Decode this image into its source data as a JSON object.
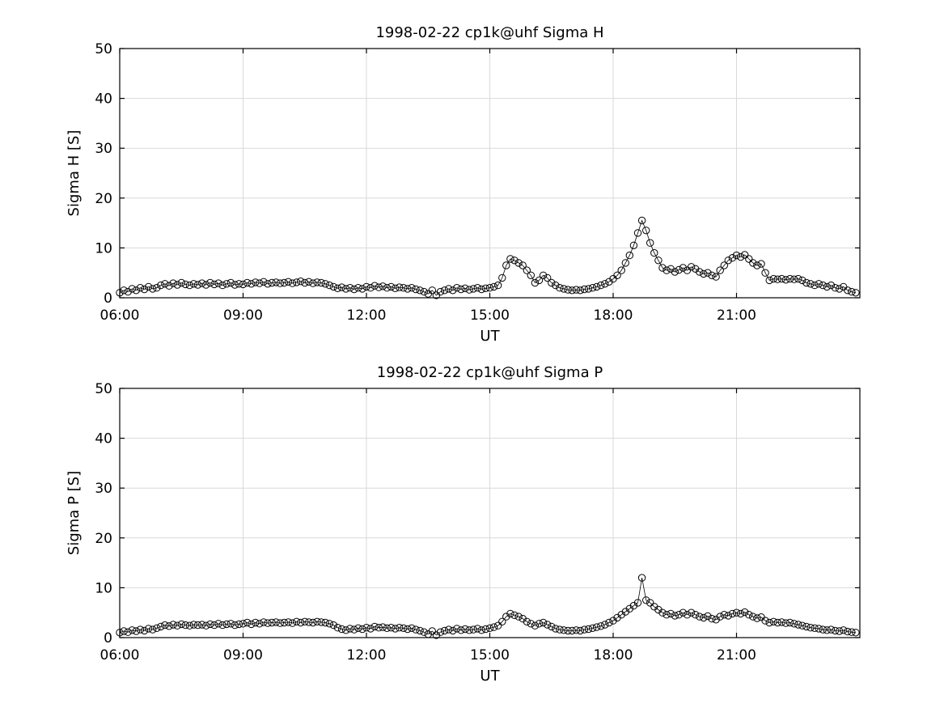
{
  "page": {
    "background": "#ffffff",
    "foreground": "#000000",
    "grid_color": "#d9d9d9"
  },
  "chart_data": [
    {
      "type": "line",
      "title": "1998-02-22  cp1k@uhf Sigma H",
      "xlabel": "UT",
      "ylabel": "Sigma H [S]",
      "xlim": [
        6,
        24
      ],
      "ylim": [
        0,
        50
      ],
      "xticks": [
        {
          "value": 6,
          "label": "06:00"
        },
        {
          "value": 9,
          "label": "09:00"
        },
        {
          "value": 12,
          "label": "12:00"
        },
        {
          "value": 15,
          "label": "15:00"
        },
        {
          "value": 18,
          "label": "18:00"
        },
        {
          "value": 21,
          "label": "21:00"
        }
      ],
      "yticks": [
        0,
        10,
        20,
        30,
        40,
        50
      ],
      "grid": true,
      "marker": "circle",
      "line_color": "#000000",
      "x_start": 6.0,
      "x_step": 0.1,
      "values": [
        1.0,
        1.5,
        1.2,
        1.8,
        1.5,
        2.0,
        1.7,
        2.2,
        1.8,
        2.0,
        2.5,
        2.8,
        2.4,
        2.9,
        2.6,
        3.0,
        2.7,
        2.5,
        2.8,
        2.6,
        2.9,
        2.6,
        3.0,
        2.7,
        2.9,
        2.5,
        2.8,
        3.0,
        2.6,
        2.8,
        2.7,
        3.0,
        2.8,
        3.1,
        2.9,
        3.2,
        2.8,
        3.0,
        3.1,
        2.9,
        3.0,
        3.2,
        2.9,
        3.1,
        3.3,
        3.0,
        3.2,
        2.9,
        3.1,
        3.0,
        2.8,
        2.5,
        2.2,
        1.9,
        2.1,
        1.8,
        2.0,
        1.7,
        2.0,
        1.8,
        2.2,
        2.0,
        2.4,
        2.1,
        2.3,
        2.0,
        2.2,
        1.9,
        2.1,
        2.0,
        1.8,
        2.0,
        1.7,
        1.5,
        1.2,
        0.8,
        1.5,
        0.5,
        1.2,
        1.5,
        1.8,
        1.5,
        2.0,
        1.7,
        1.9,
        1.6,
        1.8,
        2.0,
        1.7,
        1.9,
        2.0,
        2.2,
        2.5,
        4.0,
        6.5,
        7.8,
        7.5,
        7.0,
        6.5,
        5.5,
        4.5,
        3.0,
        3.5,
        4.5,
        4.0,
        3.0,
        2.5,
        2.0,
        1.8,
        1.6,
        1.5,
        1.6,
        1.5,
        1.7,
        1.8,
        2.0,
        2.2,
        2.5,
        2.8,
        3.2,
        3.8,
        4.5,
        5.5,
        7.0,
        8.5,
        10.5,
        13.0,
        15.5,
        13.5,
        11.0,
        9.0,
        7.5,
        6.0,
        5.5,
        5.8,
        5.2,
        5.6,
        6.0,
        5.5,
        6.2,
        5.8,
        5.2,
        4.8,
        5.0,
        4.5,
        4.2,
        5.5,
        6.5,
        7.5,
        8.0,
        8.5,
        8.2,
        8.6,
        7.8,
        7.0,
        6.5,
        6.8,
        5.0,
        3.5,
        3.8,
        3.7,
        3.8,
        3.6,
        3.8,
        3.7,
        3.8,
        3.5,
        3.0,
        2.8,
        2.5,
        2.8,
        2.5,
        2.2,
        2.5,
        2.0,
        1.8,
        2.2,
        1.5,
        1.2,
        1.0
      ]
    },
    {
      "type": "line",
      "title": "1998-02-22  cp1k@uhf Sigma P",
      "xlabel": "UT",
      "ylabel": "Sigma P [S]",
      "xlim": [
        6,
        24
      ],
      "ylim": [
        0,
        50
      ],
      "xticks": [
        {
          "value": 6,
          "label": "06:00"
        },
        {
          "value": 9,
          "label": "09:00"
        },
        {
          "value": 12,
          "label": "12:00"
        },
        {
          "value": 15,
          "label": "15:00"
        },
        {
          "value": 18,
          "label": "18:00"
        },
        {
          "value": 21,
          "label": "21:00"
        }
      ],
      "yticks": [
        0,
        10,
        20,
        30,
        40,
        50
      ],
      "grid": true,
      "marker": "circle",
      "line_color": "#000000",
      "x_start": 6.0,
      "x_step": 0.1,
      "values": [
        1.0,
        1.3,
        1.1,
        1.5,
        1.3,
        1.6,
        1.4,
        1.8,
        1.6,
        1.9,
        2.2,
        2.5,
        2.3,
        2.6,
        2.4,
        2.7,
        2.5,
        2.4,
        2.6,
        2.5,
        2.6,
        2.4,
        2.7,
        2.5,
        2.8,
        2.5,
        2.7,
        2.8,
        2.5,
        2.7,
        2.8,
        3.0,
        2.7,
        3.0,
        2.8,
        3.1,
        2.9,
        3.0,
        3.1,
        2.9,
        3.0,
        3.1,
        2.9,
        3.2,
        3.0,
        3.2,
        3.1,
        3.0,
        3.2,
        3.1,
        3.0,
        2.8,
        2.5,
        2.0,
        1.7,
        1.5,
        1.8,
        1.6,
        1.9,
        1.7,
        2.0,
        1.8,
        2.2,
        2.0,
        2.1,
        1.9,
        2.0,
        1.8,
        2.0,
        1.9,
        1.7,
        1.9,
        1.6,
        1.4,
        1.1,
        0.7,
        1.3,
        0.5,
        1.1,
        1.4,
        1.6,
        1.4,
        1.8,
        1.5,
        1.7,
        1.5,
        1.6,
        1.8,
        1.5,
        1.7,
        1.9,
        2.1,
        2.4,
        3.2,
        4.2,
        4.8,
        4.5,
        4.2,
        3.8,
        3.2,
        2.8,
        2.4,
        2.8,
        3.0,
        2.6,
        2.2,
        1.8,
        1.6,
        1.5,
        1.4,
        1.4,
        1.5,
        1.4,
        1.6,
        1.7,
        1.9,
        2.1,
        2.3,
        2.6,
        3.0,
        3.4,
        4.0,
        4.6,
        5.2,
        5.8,
        6.4,
        7.0,
        12.0,
        7.5,
        7.0,
        6.2,
        5.6,
        5.0,
        4.6,
        4.8,
        4.4,
        4.6,
        5.0,
        4.6,
        5.0,
        4.6,
        4.2,
        4.0,
        4.3,
        3.8,
        3.6,
        4.2,
        4.6,
        4.4,
        4.8,
        5.0,
        4.8,
        5.1,
        4.6,
        4.2,
        3.9,
        4.1,
        3.4,
        3.0,
        3.2,
        3.0,
        3.1,
        2.9,
        3.0,
        2.8,
        2.6,
        2.4,
        2.2,
        2.0,
        1.9,
        1.8,
        1.6,
        1.5,
        1.6,
        1.4,
        1.3,
        1.5,
        1.2,
        1.1,
        1.0
      ]
    }
  ]
}
